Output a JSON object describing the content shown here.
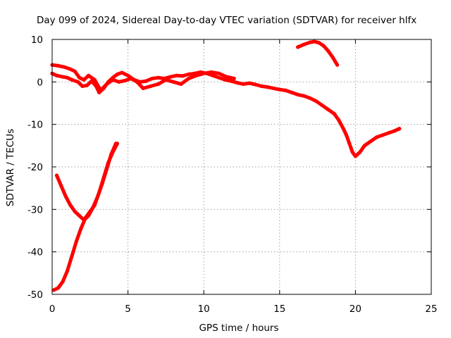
{
  "chart_data": {
    "type": "line",
    "title": "Day 099 of 2024, Sidereal Day-to-day VTEC variation (SDTVAR) for receiver hlfx",
    "xlabel": "GPS time / hours",
    "ylabel": "SDTVAR / TECUs",
    "xlim": [
      0,
      25
    ],
    "ylim": [
      -50,
      10
    ],
    "xticks": [
      0,
      5,
      10,
      15,
      20,
      25
    ],
    "yticks": [
      -50,
      -40,
      -30,
      -20,
      -10,
      0,
      10
    ],
    "xtick_labels": [
      "0",
      "5",
      "10",
      "15",
      "20",
      "25"
    ],
    "ytick_labels": [
      "-50",
      "-40",
      "-30",
      "-20",
      "-10",
      "0",
      "10"
    ],
    "grid": true,
    "legend": "none",
    "series_color": "#ff0000",
    "series": [
      {
        "name": "upper-trace-a",
        "x": [
          0.0,
          0.3,
          0.7,
          1.0,
          1.3,
          1.7,
          2.0,
          2.3,
          2.6,
          2.9,
          3.1,
          3.4,
          3.7,
          4.0,
          4.3,
          4.6,
          5.0,
          5.4,
          5.8,
          6.2,
          6.6,
          7.0,
          7.4,
          7.8,
          8.2,
          8.6,
          9.0,
          9.4,
          9.8,
          10.2,
          10.6,
          11.0,
          11.4,
          11.8,
          12.2,
          12.6,
          13.0,
          13.4,
          13.8,
          14.2,
          14.6,
          15.0,
          15.4,
          15.8,
          16.2,
          16.6,
          17.0,
          17.4,
          17.8,
          18.2,
          18.6,
          18.9,
          19.2,
          19.4,
          19.6,
          19.8,
          20.0,
          20.3,
          20.6,
          21.0,
          21.4,
          21.8,
          22.2,
          22.6,
          22.9
        ],
        "y": [
          2.0,
          1.5,
          1.2,
          1.0,
          0.5,
          0.0,
          -1.0,
          -0.8,
          0.2,
          -1.0,
          -2.5,
          -1.5,
          0.0,
          1.0,
          1.8,
          2.2,
          1.5,
          0.5,
          0.0,
          0.2,
          0.8,
          1.0,
          0.8,
          1.2,
          1.5,
          1.4,
          1.8,
          2.0,
          2.3,
          2.0,
          1.5,
          1.0,
          0.5,
          0.2,
          -0.2,
          -0.5,
          -0.3,
          -0.6,
          -1.0,
          -1.2,
          -1.5,
          -1.8,
          -2.0,
          -2.5,
          -3.0,
          -3.3,
          -3.8,
          -4.5,
          -5.5,
          -6.5,
          -7.5,
          -9.0,
          -11.0,
          -12.5,
          -14.5,
          -16.5,
          -17.5,
          -16.5,
          -15.0,
          -14.0,
          -13.0,
          -12.5,
          -12.0,
          -11.5,
          -11.0
        ]
      },
      {
        "name": "upper-trace-b",
        "x": [
          0.0,
          0.4,
          0.8,
          1.2,
          1.5,
          1.8,
          2.1,
          2.4,
          2.8,
          3.2,
          3.6,
          4.0,
          4.4,
          4.8,
          5.2,
          5.6,
          6.0,
          6.5,
          7.0,
          7.5,
          8.0,
          8.5,
          9.0,
          9.5,
          10.0,
          10.5,
          11.0,
          11.5,
          12.0
        ],
        "y": [
          4.0,
          3.8,
          3.5,
          3.0,
          2.5,
          1.0,
          0.5,
          1.5,
          0.5,
          -2.0,
          -0.5,
          0.5,
          0.0,
          0.3,
          0.8,
          0.0,
          -1.5,
          -1.0,
          -0.5,
          0.5,
          0.0,
          -0.5,
          0.8,
          1.5,
          2.0,
          2.3,
          2.0,
          1.2,
          0.8
        ]
      },
      {
        "name": "peak-trace",
        "x": [
          16.2,
          16.6,
          17.0,
          17.3,
          17.6,
          17.9,
          18.2,
          18.5,
          18.8
        ],
        "y": [
          8.2,
          8.8,
          9.3,
          9.5,
          9.2,
          8.5,
          7.3,
          5.8,
          4.0
        ]
      },
      {
        "name": "lower-trace-falling",
        "x": [
          0.3,
          0.6,
          0.9,
          1.2,
          1.5,
          1.8,
          2.1,
          2.4,
          2.7,
          3.0,
          3.3,
          3.6,
          3.9,
          4.2
        ],
        "y": [
          -22.0,
          -24.5,
          -27.0,
          -29.0,
          -30.5,
          -31.5,
          -32.5,
          -31.5,
          -29.5,
          -27.0,
          -24.0,
          -20.5,
          -17.0,
          -14.5
        ]
      },
      {
        "name": "lower-trace-rising",
        "x": [
          0.1,
          0.4,
          0.7,
          1.0,
          1.3,
          1.6,
          1.9,
          2.2,
          2.5,
          2.8,
          3.1,
          3.4,
          3.7,
          4.0,
          4.3
        ],
        "y": [
          -49.0,
          -48.5,
          -47.0,
          -44.5,
          -41.0,
          -37.5,
          -34.5,
          -32.0,
          -30.5,
          -29.0,
          -26.0,
          -22.5,
          -19.0,
          -16.5,
          -14.5
        ]
      }
    ]
  }
}
